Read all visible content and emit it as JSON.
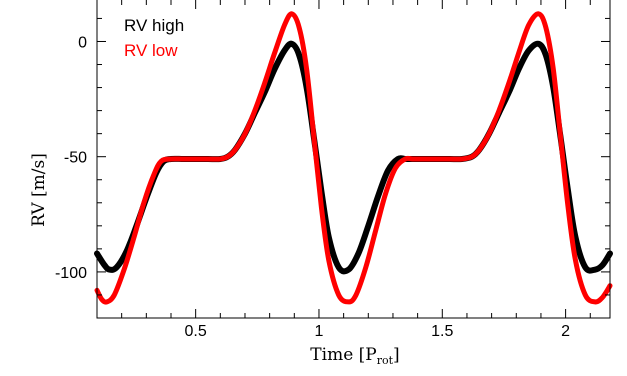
{
  "chart_data": {
    "type": "line",
    "title": "",
    "xlabel": "Time [P",
    "xlabel_sub": "rot",
    "xlabel_close": "]",
    "ylabel": "RV [m/s]",
    "xlim": [
      0.1,
      2.18
    ],
    "ylim": [
      -120,
      18
    ],
    "x_ticks": [
      0.5,
      1,
      1.5,
      2
    ],
    "x_tick_labels": [
      "0.5",
      "1",
      "1.5",
      "2"
    ],
    "y_ticks": [
      0,
      -50,
      -100
    ],
    "y_tick_labels": [
      "0",
      "-50",
      "-100"
    ],
    "grid": false,
    "legend_position": "top-left",
    "series": [
      {
        "name": "RV high",
        "color": "#000000",
        "x": [
          0.1,
          0.13,
          0.15,
          0.18,
          0.22,
          0.26,
          0.3,
          0.34,
          0.37,
          0.4,
          0.45,
          0.5,
          0.55,
          0.6,
          0.63,
          0.66,
          0.7,
          0.74,
          0.78,
          0.82,
          0.86,
          0.89,
          0.92,
          0.95,
          0.98,
          1.01,
          1.04,
          1.08,
          1.12,
          1.16,
          1.2,
          1.24,
          1.28,
          1.32,
          1.35,
          1.38,
          1.43,
          1.48,
          1.53,
          1.58,
          1.62,
          1.65,
          1.69,
          1.73,
          1.77,
          1.81,
          1.85,
          1.89,
          1.92,
          1.95,
          1.98,
          2.01,
          2.04,
          2.08,
          2.12,
          2.15,
          2.18
        ],
        "y": [
          -92,
          -97,
          -99,
          -98,
          -91,
          -80,
          -68,
          -57,
          -52,
          -51,
          -51,
          -51,
          -51,
          -51,
          -50,
          -47,
          -40,
          -31,
          -22,
          -12,
          -4,
          -1,
          -6,
          -20,
          -42,
          -65,
          -85,
          -98,
          -99,
          -92,
          -80,
          -67,
          -56,
          -51,
          -51,
          -51,
          -51,
          -51,
          -51,
          -51,
          -50,
          -47,
          -40,
          -31,
          -22,
          -12,
          -4,
          -1,
          -6,
          -20,
          -42,
          -65,
          -85,
          -98,
          -99,
          -97,
          -92
        ]
      },
      {
        "name": "RV low",
        "color": "#ff0000",
        "x": [
          0.1,
          0.12,
          0.14,
          0.17,
          0.21,
          0.25,
          0.29,
          0.33,
          0.36,
          0.4,
          0.45,
          0.5,
          0.55,
          0.6,
          0.63,
          0.66,
          0.7,
          0.74,
          0.78,
          0.82,
          0.86,
          0.89,
          0.92,
          0.95,
          0.98,
          1.01,
          1.04,
          1.08,
          1.12,
          1.15,
          1.19,
          1.23,
          1.27,
          1.31,
          1.35,
          1.38,
          1.43,
          1.48,
          1.53,
          1.58,
          1.62,
          1.65,
          1.69,
          1.73,
          1.77,
          1.81,
          1.85,
          1.89,
          1.92,
          1.95,
          1.98,
          2.01,
          2.04,
          2.08,
          2.12,
          2.15,
          2.18
        ],
        "y": [
          -108,
          -112,
          -113,
          -110,
          -99,
          -85,
          -70,
          -58,
          -52,
          -51,
          -51,
          -51,
          -51,
          -51,
          -50,
          -47,
          -40,
          -30,
          -18,
          -5,
          7,
          12,
          6,
          -12,
          -42,
          -72,
          -95,
          -110,
          -113,
          -110,
          -98,
          -82,
          -66,
          -55,
          -51,
          -51,
          -51,
          -51,
          -51,
          -51,
          -50,
          -47,
          -40,
          -30,
          -18,
          -5,
          7,
          12,
          6,
          -12,
          -42,
          -72,
          -95,
          -110,
          -113,
          -111,
          -106
        ]
      }
    ]
  }
}
